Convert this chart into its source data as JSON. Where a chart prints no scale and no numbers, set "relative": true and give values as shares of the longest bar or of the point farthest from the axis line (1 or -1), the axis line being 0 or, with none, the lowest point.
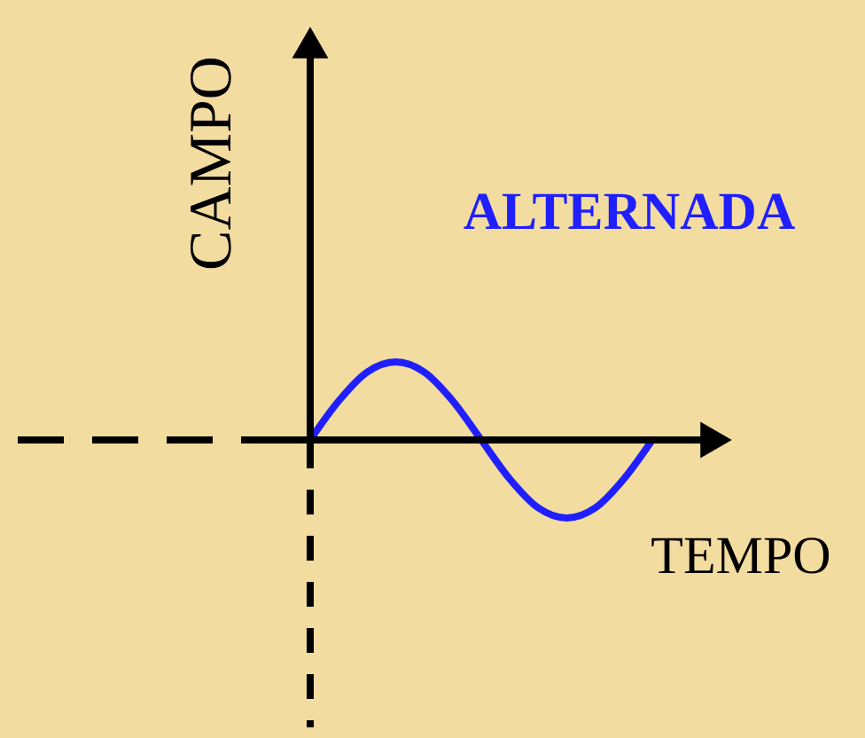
{
  "chart_data": {
    "type": "line",
    "relative": true,
    "color": "#1f1fff",
    "categories": [
      null,
      null,
      null,
      null,
      null,
      null,
      null,
      null,
      null,
      null,
      null,
      null,
      null
    ],
    "values": [
      0,
      0.5,
      0.87,
      1,
      0.87,
      0.5,
      0,
      -0.5,
      -0.87,
      -1,
      -0.87,
      -0.5,
      0
    ],
    "xlabel": "TEMPO",
    "ylabel": "CAMPO",
    "annotations": [
      "ALTERNADA"
    ]
  }
}
